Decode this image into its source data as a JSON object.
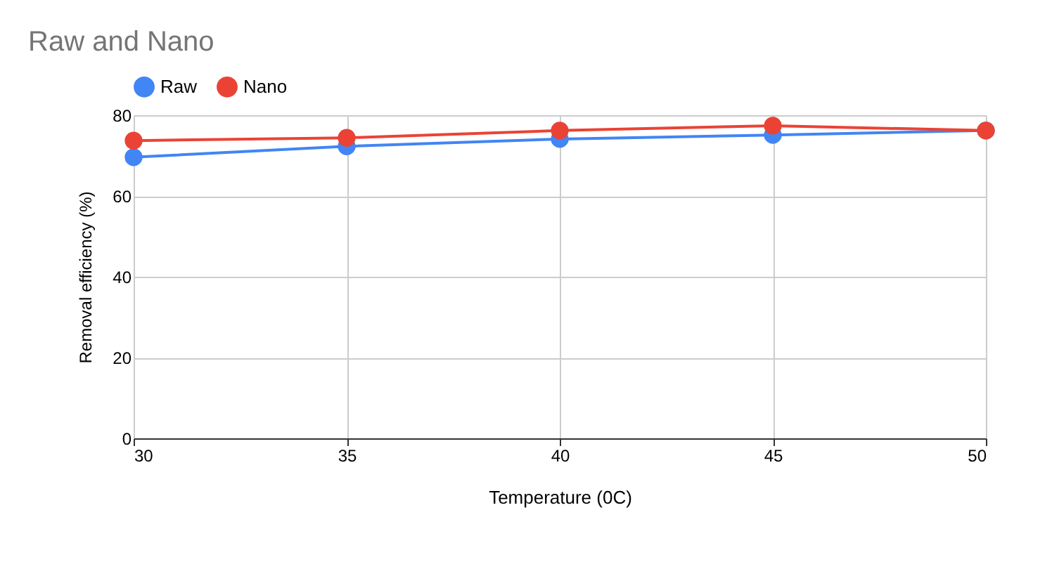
{
  "chart_data": {
    "type": "line",
    "title": "Raw and Nano",
    "xlabel": "Temperature (0C)",
    "ylabel": "Removal efficiency (%)",
    "x": [
      30,
      35,
      40,
      45,
      50
    ],
    "series": [
      {
        "name": "Raw",
        "color": "#4285f4",
        "values": [
          69.6,
          72.3,
          74.1,
          75.1,
          76.2
        ]
      },
      {
        "name": "Nano",
        "color": "#ea4335",
        "values": [
          73.7,
          74.4,
          76.2,
          77.4,
          76.2
        ]
      }
    ],
    "xlim": [
      30,
      50
    ],
    "xticks": [
      30,
      35,
      40,
      45,
      50
    ],
    "ylim": [
      0,
      80
    ],
    "yticks": [
      0,
      20,
      40,
      60,
      80
    ],
    "grid": true,
    "legend": "top",
    "marker": "circle",
    "line_style": "solid"
  }
}
